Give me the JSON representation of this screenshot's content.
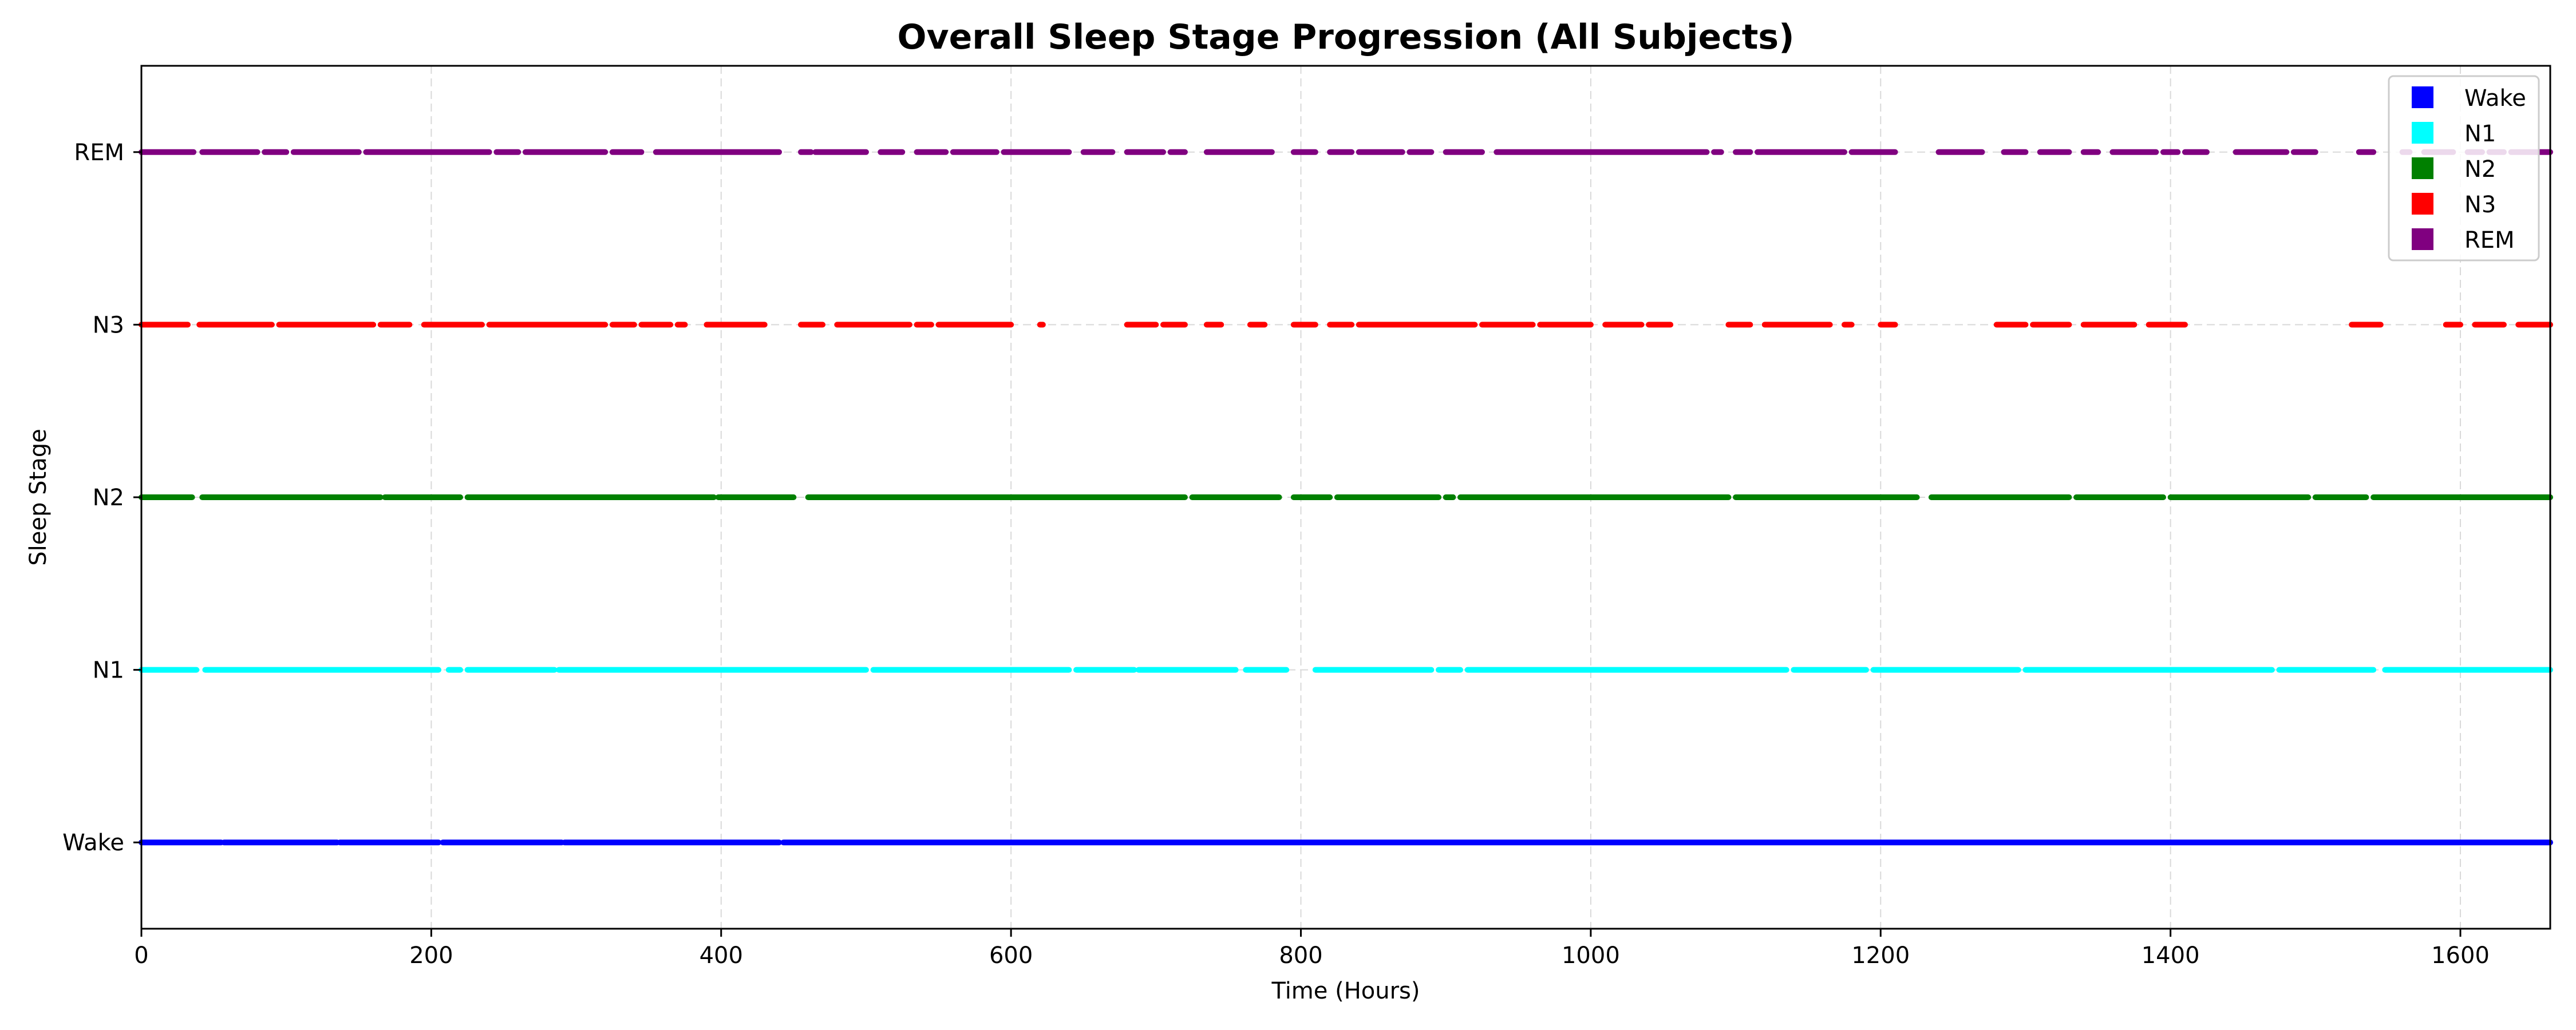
{
  "chart_data": {
    "type": "scatter",
    "title": "Overall Sleep Stage Progression (All Subjects)",
    "xlabel": "Time (Hours)",
    "ylabel": "Sleep Stage",
    "xlim": [
      0,
      1662
    ],
    "ylim": [
      -0.5,
      4.5
    ],
    "xticks": [
      0,
      200,
      400,
      600,
      800,
      1000,
      1200,
      1400,
      1600
    ],
    "yticks": [
      {
        "value": 0,
        "label": "Wake"
      },
      {
        "value": 1,
        "label": "N1"
      },
      {
        "value": 2,
        "label": "N2"
      },
      {
        "value": 3,
        "label": "N3"
      },
      {
        "value": 4,
        "label": "REM"
      }
    ],
    "grid": true,
    "legend_position": "top-right",
    "series": [
      {
        "name": "Wake",
        "stage": 0,
        "color": "#0000ff",
        "segments": [
          [
            0,
            55
          ],
          [
            57,
            135
          ],
          [
            137,
            205
          ],
          [
            208,
            290
          ],
          [
            292,
            440
          ],
          [
            443,
            1662
          ]
        ]
      },
      {
        "name": "N1",
        "stage": 1,
        "color": "#00ffff",
        "segments": [
          [
            0,
            38
          ],
          [
            44,
            205
          ],
          [
            212,
            220
          ],
          [
            225,
            285
          ],
          [
            288,
            500
          ],
          [
            505,
            640
          ],
          [
            645,
            685
          ],
          [
            688,
            755
          ],
          [
            762,
            790
          ],
          [
            810,
            890
          ],
          [
            895,
            910
          ],
          [
            915,
            1135
          ],
          [
            1140,
            1190
          ],
          [
            1195,
            1295
          ],
          [
            1300,
            1470
          ],
          [
            1475,
            1540
          ],
          [
            1548,
            1662
          ]
        ]
      },
      {
        "name": "N2",
        "stage": 2,
        "color": "#008000",
        "segments": [
          [
            0,
            35
          ],
          [
            42,
            165
          ],
          [
            168,
            220
          ],
          [
            225,
            395
          ],
          [
            398,
            450
          ],
          [
            460,
            720
          ],
          [
            725,
            785
          ],
          [
            795,
            820
          ],
          [
            825,
            895
          ],
          [
            900,
            905
          ],
          [
            910,
            1095
          ],
          [
            1100,
            1225
          ],
          [
            1235,
            1330
          ],
          [
            1335,
            1395
          ],
          [
            1400,
            1495
          ],
          [
            1500,
            1535
          ],
          [
            1540,
            1662
          ]
        ]
      },
      {
        "name": "N3",
        "stage": 3,
        "color": "#ff0000",
        "segments": [
          [
            0,
            32
          ],
          [
            40,
            90
          ],
          [
            95,
            160
          ],
          [
            165,
            185
          ],
          [
            195,
            235
          ],
          [
            240,
            320
          ],
          [
            325,
            340
          ],
          [
            345,
            365
          ],
          [
            370,
            375
          ],
          [
            390,
            430
          ],
          [
            455,
            470
          ],
          [
            480,
            530
          ],
          [
            535,
            545
          ],
          [
            550,
            600
          ],
          [
            620,
            622
          ],
          [
            680,
            700
          ],
          [
            705,
            720
          ],
          [
            735,
            745
          ],
          [
            765,
            775
          ],
          [
            795,
            810
          ],
          [
            820,
            835
          ],
          [
            840,
            920
          ],
          [
            925,
            960
          ],
          [
            965,
            1000
          ],
          [
            1010,
            1035
          ],
          [
            1040,
            1055
          ],
          [
            1095,
            1110
          ],
          [
            1120,
            1165
          ],
          [
            1175,
            1180
          ],
          [
            1200,
            1210
          ],
          [
            1280,
            1300
          ],
          [
            1305,
            1330
          ],
          [
            1340,
            1375
          ],
          [
            1385,
            1410
          ],
          [
            1525,
            1545
          ],
          [
            1590,
            1600
          ],
          [
            1610,
            1630
          ],
          [
            1640,
            1662
          ]
        ]
      },
      {
        "name": "REM",
        "stage": 4,
        "color": "#800080",
        "segments": [
          [
            0,
            36
          ],
          [
            42,
            80
          ],
          [
            85,
            100
          ],
          [
            105,
            150
          ],
          [
            155,
            240
          ],
          [
            245,
            260
          ],
          [
            265,
            320
          ],
          [
            325,
            345
          ],
          [
            355,
            440
          ],
          [
            455,
            462
          ],
          [
            465,
            500
          ],
          [
            510,
            525
          ],
          [
            535,
            555
          ],
          [
            560,
            590
          ],
          [
            595,
            640
          ],
          [
            650,
            670
          ],
          [
            680,
            705
          ],
          [
            710,
            720
          ],
          [
            735,
            780
          ],
          [
            795,
            810
          ],
          [
            820,
            835
          ],
          [
            840,
            870
          ],
          [
            875,
            890
          ],
          [
            900,
            925
          ],
          [
            935,
            1080
          ],
          [
            1085,
            1090
          ],
          [
            1100,
            1110
          ],
          [
            1115,
            1175
          ],
          [
            1180,
            1210
          ],
          [
            1240,
            1270
          ],
          [
            1285,
            1300
          ],
          [
            1310,
            1330
          ],
          [
            1340,
            1350
          ],
          [
            1360,
            1390
          ],
          [
            1395,
            1405
          ],
          [
            1410,
            1425
          ],
          [
            1445,
            1480
          ],
          [
            1485,
            1500
          ],
          [
            1530,
            1540
          ],
          [
            1560,
            1565
          ],
          [
            1575,
            1595
          ],
          [
            1605,
            1615
          ],
          [
            1620,
            1630
          ],
          [
            1635,
            1662
          ]
        ]
      }
    ]
  }
}
